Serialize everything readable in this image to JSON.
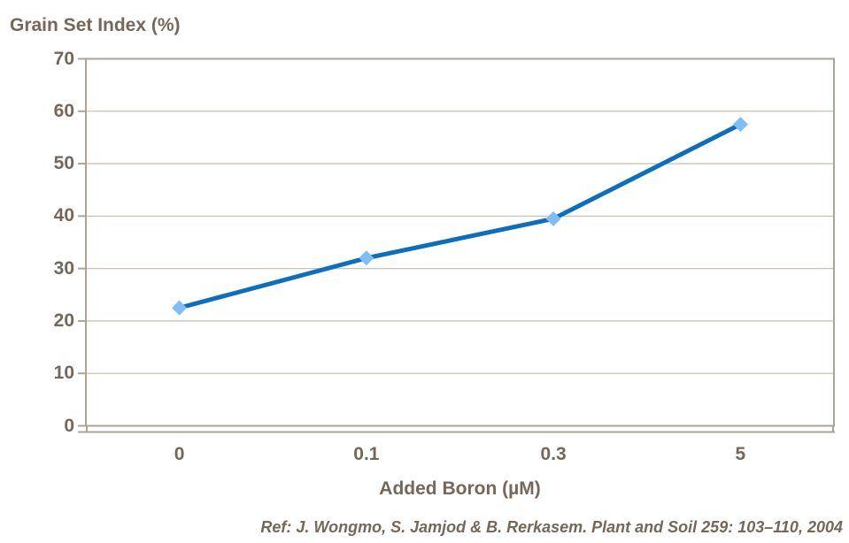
{
  "chart_data": {
    "type": "line",
    "title": "Grain Set Index (%)",
    "xlabel": "Added Boron (µM)",
    "ylabel": "",
    "categories": [
      "0",
      "0.1",
      "0.3",
      "5"
    ],
    "series": [
      {
        "name": "Grain Set Index",
        "values": [
          22.5,
          32,
          39.5,
          57.5
        ]
      }
    ],
    "ylim": [
      0,
      70
    ],
    "yticks": [
      "0",
      "10",
      "20",
      "30",
      "40",
      "50",
      "60",
      "70"
    ],
    "ytick_values": [
      0,
      10,
      20,
      30,
      40,
      50,
      60,
      70
    ],
    "grid": "horizontal",
    "legend": "none",
    "marker": "diamond",
    "colors": {
      "line": "#0c6ebe",
      "marker": "#7fbdf4",
      "text": "#75675a",
      "plot_border": "#aca396",
      "gridline": "#cbc3b8"
    }
  },
  "footer": {
    "reference": "Ref: J. Wongmo, S. Jamjod & B. Rerkasem. Plant and Soil 259: 103–110, 2004"
  }
}
